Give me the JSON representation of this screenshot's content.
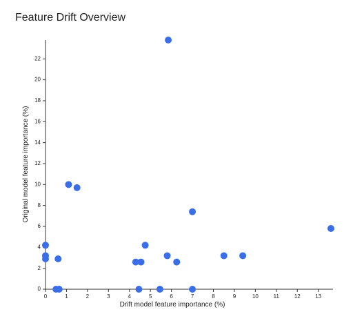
{
  "chart_data": {
    "type": "scatter",
    "title": "Feature Drift Overview",
    "x_label": "Drift model feature importance (%)",
    "y_label": "Original model feature importance (%)",
    "color": "#3a6ee8",
    "x": [
      5.85,
      1.1,
      1.5,
      7.0,
      13.6,
      0,
      0,
      0,
      0.6,
      4.75,
      4.3,
      4.55,
      5.8,
      6.25,
      8.5,
      9.4,
      0.5,
      0.65,
      4.45,
      5.45,
      7.0
    ],
    "y": [
      23.8,
      10,
      9.7,
      7.4,
      5.8,
      4.2,
      3.2,
      2.9,
      2.9,
      4.2,
      2.6,
      2.6,
      3.2,
      2.6,
      3.2,
      3.2,
      0,
      0,
      0,
      0,
      0
    ],
    "xlim": [
      0,
      13.7
    ],
    "ylim": [
      0,
      23.8
    ],
    "xticks": [
      0,
      1,
      2,
      3,
      4,
      5,
      6,
      7,
      8,
      9,
      10,
      11,
      12,
      13
    ],
    "yticks": [
      0,
      2,
      4,
      6,
      8,
      10,
      12,
      14,
      16,
      18,
      20,
      22
    ]
  }
}
